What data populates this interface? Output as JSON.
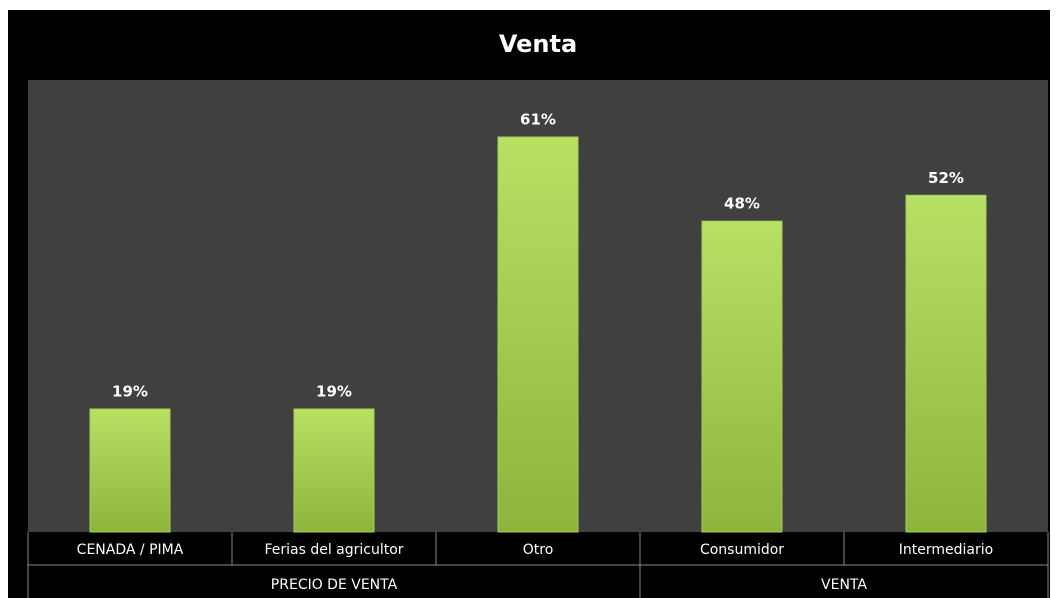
{
  "chart_data": {
    "type": "bar",
    "title": "Venta",
    "color": "#a3cf55",
    "groups": [
      {
        "name": "PRECIO DE VENTA",
        "categories": [
          "CENADA / PIMA",
          "Ferias del agricultor",
          "Otro"
        ],
        "values": [
          19,
          19,
          61
        ],
        "value_labels": [
          "19%",
          "19%",
          "61%"
        ]
      },
      {
        "name": "VENTA",
        "categories": [
          "Consumidor",
          "Intermediario"
        ],
        "values": [
          48,
          52
        ],
        "value_labels": [
          "48%",
          "52%"
        ]
      }
    ]
  }
}
